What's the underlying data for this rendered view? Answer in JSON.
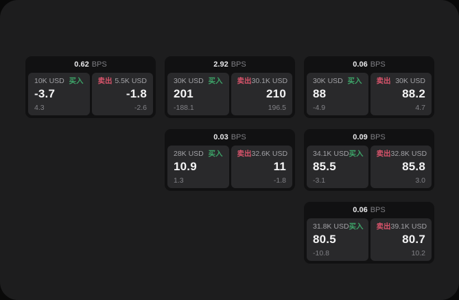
{
  "labels": {
    "bps_unit": "BPS",
    "buy": "买入",
    "sell": "卖出"
  },
  "colors": {
    "buy": "#3da368",
    "sell": "#d9546b",
    "page_bg": "#1d1d1e",
    "card_bg": "#111112",
    "panel_bg": "#29292b"
  },
  "cards": [
    {
      "bps": "0.62",
      "buy": {
        "amount": "10K USD",
        "price": "-3.7",
        "delta": "4.3"
      },
      "sell": {
        "amount": "5.5K USD",
        "price": "-1.8",
        "delta": "-2.6"
      }
    },
    {
      "bps": "2.92",
      "buy": {
        "amount": "30K USD",
        "price": "201",
        "delta": "-188.1"
      },
      "sell": {
        "amount": "30.1K USD",
        "price": "210",
        "delta": "196.5"
      }
    },
    {
      "bps": "0.06",
      "buy": {
        "amount": "30K USD",
        "price": "88",
        "delta": "-4.9"
      },
      "sell": {
        "amount": "30K USD",
        "price": "88.2",
        "delta": "4.7"
      }
    },
    {
      "bps": "0.03",
      "buy": {
        "amount": "28K USD",
        "price": "10.9",
        "delta": "1.3"
      },
      "sell": {
        "amount": "32.6K USD",
        "price": "11",
        "delta": "-1.8"
      }
    },
    {
      "bps": "0.09",
      "buy": {
        "amount": "34.1K USD",
        "price": "85.5",
        "delta": "-3.1"
      },
      "sell": {
        "amount": "32.8K USD",
        "price": "85.8",
        "delta": "3.0"
      }
    },
    {
      "bps": "0.06",
      "buy": {
        "amount": "31.8K USD",
        "price": "80.5",
        "delta": "-10.8"
      },
      "sell": {
        "amount": "39.1K USD",
        "price": "80.7",
        "delta": "10.2"
      }
    }
  ]
}
